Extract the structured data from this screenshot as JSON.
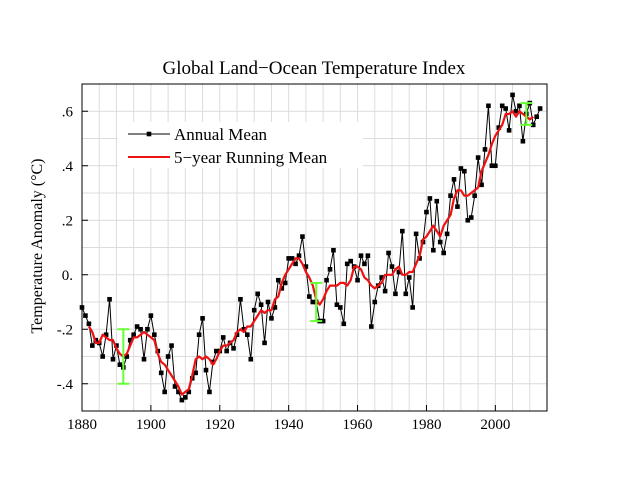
{
  "chart_data": {
    "type": "line",
    "title": "Global Land−Ocean Temperature Index",
    "xlabel": "",
    "ylabel": "Temperature Anomaly (°C)",
    "xlim": [
      1880,
      2015
    ],
    "ylim": [
      -0.5,
      0.7
    ],
    "grid": true,
    "legend_position": "top-left",
    "x_ticks": [
      1880,
      1900,
      1920,
      1940,
      1960,
      1980,
      2000
    ],
    "y_ticks": [
      {
        "value": -0.4,
        "label": "-.4"
      },
      {
        "value": -0.2,
        "label": "-.2"
      },
      {
        "value": 0.0,
        "label": "0."
      },
      {
        "value": 0.2,
        "label": ".2"
      },
      {
        "value": 0.4,
        "label": ".4"
      },
      {
        "value": 0.6,
        "label": ".6"
      }
    ],
    "series": [
      {
        "name": "Annual Mean",
        "color": "#000000",
        "marker": "square",
        "x": [
          1880,
          1881,
          1882,
          1883,
          1884,
          1885,
          1886,
          1887,
          1888,
          1889,
          1890,
          1891,
          1892,
          1893,
          1894,
          1895,
          1896,
          1897,
          1898,
          1899,
          1900,
          1901,
          1902,
          1903,
          1904,
          1905,
          1906,
          1907,
          1908,
          1909,
          1910,
          1911,
          1912,
          1913,
          1914,
          1915,
          1916,
          1917,
          1918,
          1919,
          1920,
          1921,
          1922,
          1923,
          1924,
          1925,
          1926,
          1927,
          1928,
          1929,
          1930,
          1931,
          1932,
          1933,
          1934,
          1935,
          1936,
          1937,
          1938,
          1939,
          1940,
          1941,
          1942,
          1943,
          1944,
          1945,
          1946,
          1947,
          1948,
          1949,
          1950,
          1951,
          1952,
          1953,
          1954,
          1955,
          1956,
          1957,
          1958,
          1959,
          1960,
          1961,
          1962,
          1963,
          1964,
          1965,
          1966,
          1967,
          1968,
          1969,
          1970,
          1971,
          1972,
          1973,
          1974,
          1975,
          1976,
          1977,
          1978,
          1979,
          1980,
          1981,
          1982,
          1983,
          1984,
          1985,
          1986,
          1987,
          1988,
          1989,
          1990,
          1991,
          1992,
          1993,
          1994,
          1995,
          1996,
          1997,
          1998,
          1999,
          2000,
          2001,
          2002,
          2003,
          2004,
          2005,
          2006,
          2007,
          2008,
          2009,
          2010,
          2011,
          2012,
          2013
        ],
        "values": [
          -0.12,
          -0.15,
          -0.18,
          -0.26,
          -0.24,
          -0.25,
          -0.3,
          -0.22,
          -0.09,
          -0.31,
          -0.26,
          -0.33,
          -0.34,
          -0.3,
          -0.24,
          -0.22,
          -0.19,
          -0.2,
          -0.31,
          -0.2,
          -0.15,
          -0.22,
          -0.28,
          -0.36,
          -0.43,
          -0.3,
          -0.26,
          -0.41,
          -0.43,
          -0.46,
          -0.45,
          -0.43,
          -0.38,
          -0.36,
          -0.22,
          -0.16,
          -0.35,
          -0.43,
          -0.32,
          -0.28,
          -0.28,
          -0.23,
          -0.28,
          -0.25,
          -0.27,
          -0.22,
          -0.09,
          -0.2,
          -0.22,
          -0.31,
          -0.13,
          -0.07,
          -0.11,
          -0.25,
          -0.1,
          -0.16,
          -0.12,
          -0.02,
          -0.05,
          -0.03,
          0.06,
          0.06,
          0.04,
          0.07,
          0.14,
          0.03,
          -0.08,
          -0.1,
          -0.1,
          -0.17,
          -0.17,
          -0.02,
          0.02,
          0.09,
          -0.11,
          -0.12,
          -0.18,
          0.04,
          0.05,
          0.03,
          -0.02,
          0.07,
          0.04,
          0.07,
          -0.19,
          -0.1,
          -0.04,
          -0.01,
          -0.06,
          0.08,
          0.03,
          -0.07,
          0.01,
          0.16,
          -0.07,
          -0.01,
          -0.12,
          0.15,
          0.06,
          0.12,
          0.23,
          0.28,
          0.09,
          0.27,
          0.12,
          0.08,
          0.15,
          0.29,
          0.35,
          0.25,
          0.39,
          0.38,
          0.2,
          0.21,
          0.29,
          0.43,
          0.33,
          0.46,
          0.62,
          0.4,
          0.4,
          0.54,
          0.62,
          0.61,
          0.53,
          0.66,
          0.6,
          0.62,
          0.49,
          0.59,
          0.63,
          0.55,
          0.58,
          0.61
        ]
      },
      {
        "name": "5−year Running Mean",
        "color": "#ee1111",
        "marker": "none",
        "x": [
          1882,
          1883,
          1884,
          1885,
          1886,
          1887,
          1888,
          1889,
          1890,
          1891,
          1892,
          1893,
          1894,
          1895,
          1896,
          1897,
          1898,
          1899,
          1900,
          1901,
          1902,
          1903,
          1904,
          1905,
          1906,
          1907,
          1908,
          1909,
          1910,
          1911,
          1912,
          1913,
          1914,
          1915,
          1916,
          1917,
          1918,
          1919,
          1920,
          1921,
          1922,
          1923,
          1924,
          1925,
          1926,
          1927,
          1928,
          1929,
          1930,
          1931,
          1932,
          1933,
          1934,
          1935,
          1936,
          1937,
          1938,
          1939,
          1940,
          1941,
          1942,
          1943,
          1944,
          1945,
          1946,
          1947,
          1948,
          1949,
          1950,
          1951,
          1952,
          1953,
          1954,
          1955,
          1956,
          1957,
          1958,
          1959,
          1960,
          1961,
          1962,
          1963,
          1964,
          1965,
          1966,
          1967,
          1968,
          1969,
          1970,
          1971,
          1972,
          1973,
          1974,
          1975,
          1976,
          1977,
          1978,
          1979,
          1980,
          1981,
          1982,
          1983,
          1984,
          1985,
          1986,
          1987,
          1988,
          1989,
          1990,
          1991,
          1992,
          1993,
          1994,
          1995,
          1996,
          1997,
          1998,
          1999,
          2000,
          2001,
          2002,
          2003,
          2004,
          2005,
          2006,
          2007,
          2008,
          2009,
          2010,
          2011
        ],
        "values": [
          -0.19,
          -0.21,
          -0.25,
          -0.25,
          -0.22,
          -0.23,
          -0.24,
          -0.24,
          -0.27,
          -0.29,
          -0.3,
          -0.29,
          -0.26,
          -0.23,
          -0.23,
          -0.22,
          -0.21,
          -0.22,
          -0.23,
          -0.24,
          -0.29,
          -0.32,
          -0.33,
          -0.35,
          -0.37,
          -0.39,
          -0.41,
          -0.44,
          -0.43,
          -0.42,
          -0.37,
          -0.31,
          -0.3,
          -0.31,
          -0.3,
          -0.31,
          -0.33,
          -0.31,
          -0.28,
          -0.26,
          -0.26,
          -0.25,
          -0.24,
          -0.21,
          -0.2,
          -0.21,
          -0.19,
          -0.19,
          -0.17,
          -0.15,
          -0.13,
          -0.14,
          -0.13,
          -0.13,
          -0.09,
          -0.08,
          -0.03,
          -0.0,
          0.02,
          0.04,
          0.06,
          0.06,
          0.04,
          0.01,
          -0.01,
          -0.04,
          -0.09,
          -0.11,
          -0.09,
          -0.06,
          -0.04,
          -0.04,
          -0.04,
          -0.03,
          -0.03,
          -0.04,
          -0.02,
          0.03,
          0.03,
          0.02,
          -0.01,
          -0.02,
          -0.04,
          -0.05,
          -0.04,
          -0.03,
          0.0,
          0.0,
          0.0,
          0.02,
          0.03,
          0.0,
          0.0,
          0.01,
          0.01,
          0.04,
          0.07,
          0.13,
          0.14,
          0.16,
          0.18,
          0.16,
          0.14,
          0.18,
          0.2,
          0.22,
          0.28,
          0.31,
          0.31,
          0.29,
          0.29,
          0.3,
          0.31,
          0.32,
          0.38,
          0.41,
          0.44,
          0.48,
          0.51,
          0.53,
          0.55,
          0.59,
          0.59,
          0.6,
          0.58,
          0.6,
          0.59,
          0.58,
          0.57,
          0.58
        ]
      }
    ],
    "uncertainty_bars": [
      {
        "x": 1892,
        "low": -0.4,
        "high": -0.2,
        "color": "#66ff33"
      },
      {
        "x": 1948,
        "low": -0.17,
        "high": -0.03,
        "color": "#66ff33"
      },
      {
        "x": 2009,
        "low": 0.55,
        "high": 0.63,
        "color": "#66ff33"
      }
    ]
  }
}
